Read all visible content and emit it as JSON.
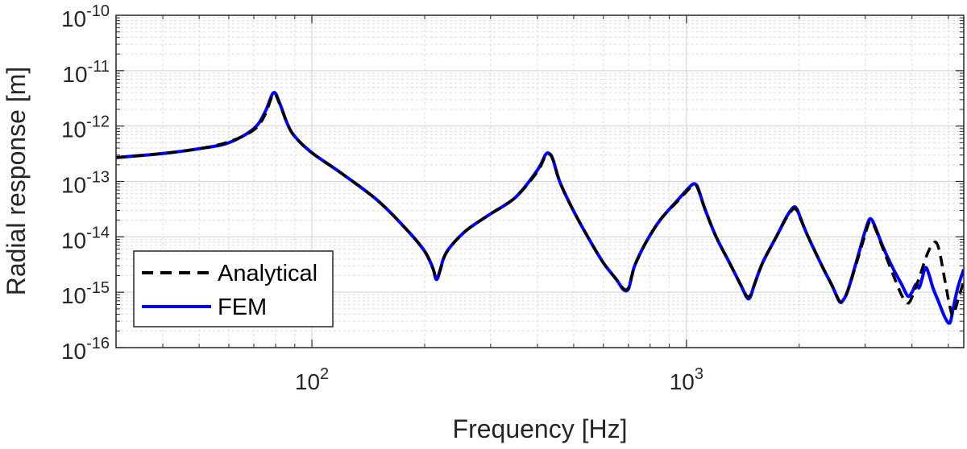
{
  "chart_data": {
    "type": "line",
    "xlabel": "Frequency [Hz]",
    "ylabel": "Radial response [m]",
    "x_scale": "log",
    "y_scale": "log",
    "xlim": [
      30,
      5500
    ],
    "ylim": [
      1e-16,
      1e-10
    ],
    "grid": true,
    "minor_grid": true,
    "legend_position": "bottom-left",
    "x_ticks": [
      {
        "value": 100,
        "base": "10",
        "exp": "2"
      },
      {
        "value": 1000,
        "base": "10",
        "exp": "3"
      }
    ],
    "y_ticks": [
      {
        "value": 1e-10,
        "base": "10",
        "exp": "-10"
      },
      {
        "value": 1e-11,
        "base": "10",
        "exp": "-11"
      },
      {
        "value": 1e-12,
        "base": "10",
        "exp": "-12"
      },
      {
        "value": 1e-13,
        "base": "10",
        "exp": "-13"
      },
      {
        "value": 1e-14,
        "base": "10",
        "exp": "-14"
      },
      {
        "value": 1e-15,
        "base": "10",
        "exp": "-15"
      },
      {
        "value": 1e-16,
        "base": "10",
        "exp": "-16"
      }
    ],
    "series": [
      {
        "name": "Analytical",
        "color": "#000000",
        "style": "dashed",
        "x": [
          30,
          40,
          50,
          60,
          70,
          75,
          79,
          82,
          86,
          90,
          100,
          120,
          150,
          180,
          200,
          210,
          215,
          220,
          225,
          235,
          260,
          300,
          350,
          400,
          420,
          430,
          440,
          460,
          500,
          550,
          600,
          650,
          680,
          700,
          715,
          730,
          780,
          850,
          950,
          1030,
          1060,
          1080,
          1120,
          1200,
          1300,
          1400,
          1450,
          1480,
          1520,
          1600,
          1750,
          1850,
          1930,
          1970,
          2010,
          2100,
          2300,
          2450,
          2560,
          2620,
          2700,
          2850,
          2980,
          3060,
          3110,
          3180,
          3350,
          3550,
          3750,
          3880,
          3950,
          4050,
          4200,
          4400,
          4550,
          4650,
          4750,
          4900,
          5050,
          5150,
          5300,
          5500
        ],
        "y": [
          2.7e-13,
          3.2e-13,
          3.9e-13,
          5.2e-13,
          8.5e-13,
          1.6e-12,
          3.8e-12,
          2.5e-12,
          1.1e-12,
          6.5e-13,
          3.3e-13,
          1.4e-13,
          4.5e-14,
          1.3e-14,
          5.5e-15,
          2.8e-15,
          1.8e-15,
          2.5e-15,
          4.2e-15,
          6.8e-15,
          1.35e-14,
          2.6e-14,
          5.2e-14,
          1.5e-13,
          2.9e-13,
          3.1e-13,
          2.5e-13,
          9.5e-14,
          2.9e-14,
          9e-15,
          3.4e-15,
          1.7e-15,
          1.15e-15,
          1.2e-15,
          2e-15,
          3.2e-15,
          8e-15,
          2e-14,
          4.5e-14,
          8e-14,
          8.5e-14,
          6.5e-14,
          3.2e-14,
          1e-14,
          3.5e-15,
          1.3e-15,
          8.5e-16,
          8.8e-16,
          1.4e-15,
          3.5e-15,
          1.1e-14,
          2.2e-14,
          3.2e-14,
          3e-14,
          2.2e-14,
          1.1e-14,
          3e-15,
          1.3e-15,
          7e-16,
          7.5e-16,
          1.1e-15,
          3.5e-15,
          9.5e-15,
          1.7e-14,
          1.9e-14,
          1.5e-14,
          6e-15,
          2.2e-15,
          9e-16,
          6.5e-16,
          6.8e-16,
          1e-15,
          2e-15,
          5e-15,
          7.5e-15,
          7.8e-15,
          5e-15,
          1.6e-15,
          5.5e-16,
          3.8e-16,
          7e-16,
          1.6e-15
        ]
      },
      {
        "name": "FEM",
        "color": "#0000ff",
        "style": "solid",
        "x": [
          30,
          40,
          50,
          60,
          70,
          75,
          79,
          82,
          86,
          90,
          100,
          120,
          150,
          180,
          200,
          210,
          215,
          220,
          225,
          235,
          260,
          300,
          350,
          400,
          420,
          430,
          440,
          460,
          500,
          550,
          600,
          650,
          680,
          700,
          715,
          730,
          780,
          850,
          950,
          1030,
          1060,
          1080,
          1120,
          1200,
          1300,
          1400,
          1450,
          1480,
          1520,
          1600,
          1750,
          1850,
          1930,
          1970,
          2010,
          2100,
          2300,
          2450,
          2560,
          2620,
          2700,
          2850,
          2980,
          3060,
          3110,
          3180,
          3350,
          3550,
          3750,
          3900,
          4000,
          4100,
          4180,
          4260,
          4350,
          4450,
          4550,
          4700,
          4900,
          5050,
          5150,
          5300,
          5500
        ],
        "y": [
          2.7e-13,
          3.2e-13,
          3.9e-13,
          5e-13,
          9e-13,
          1.8e-12,
          4e-12,
          2.6e-12,
          1.1e-12,
          6.5e-13,
          3.3e-13,
          1.4e-13,
          4.5e-14,
          1.3e-14,
          5.5e-15,
          2.8e-15,
          1.7e-15,
          2.5e-15,
          4.2e-15,
          6.8e-15,
          1.35e-14,
          2.6e-14,
          5.2e-14,
          1.6e-13,
          3e-13,
          3.2e-13,
          2.5e-13,
          9.5e-14,
          2.9e-14,
          9e-15,
          3.4e-15,
          1.7e-15,
          1.1e-15,
          1.15e-15,
          2e-15,
          3.2e-15,
          8e-15,
          2e-14,
          4.7e-14,
          8.5e-14,
          8.8e-14,
          6.8e-14,
          3.2e-14,
          1e-14,
          3.5e-15,
          1.3e-15,
          8e-16,
          8.2e-16,
          1.4e-15,
          3.5e-15,
          1.1e-14,
          2.3e-14,
          3.4e-14,
          3.2e-14,
          2.3e-14,
          1.1e-14,
          3e-15,
          1.3e-15,
          6.8e-16,
          7.2e-16,
          1.1e-15,
          3.8e-15,
          1.1e-14,
          1.9e-14,
          2.1e-14,
          1.6e-14,
          6.5e-15,
          2.8e-15,
          1.4e-15,
          8.5e-16,
          1e-15,
          1.4e-15,
          1.2e-15,
          1.8e-15,
          2.8e-15,
          2e-15,
          1.2e-15,
          7e-16,
          3.5e-16,
          2.8e-16,
          5e-16,
          1.2e-15,
          2.6e-15
        ]
      }
    ]
  }
}
